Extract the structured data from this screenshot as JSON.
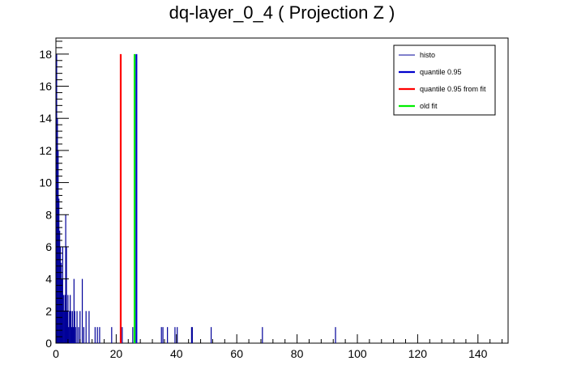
{
  "chart_data": {
    "type": "bar",
    "title": "dq-layer_0_4 ( Projection Z )",
    "xlabel": "",
    "ylabel": "",
    "xlim": [
      0,
      150
    ],
    "ylim": [
      0,
      19
    ],
    "x_ticks": [
      0,
      20,
      40,
      60,
      80,
      100,
      120,
      140
    ],
    "y_ticks": [
      0,
      2,
      4,
      6,
      8,
      10,
      12,
      14,
      16,
      18
    ],
    "grid": false,
    "legend_position": "top-right",
    "histogram": {
      "name": "histo",
      "color": "#000099",
      "bins": [
        {
          "x": 0.25,
          "y": 18
        },
        {
          "x": 0.5,
          "y": 14
        },
        {
          "x": 0.75,
          "y": 12
        },
        {
          "x": 1.0,
          "y": 9
        },
        {
          "x": 1.25,
          "y": 7
        },
        {
          "x": 1.5,
          "y": 6
        },
        {
          "x": 1.75,
          "y": 5
        },
        {
          "x": 2.0,
          "y": 4
        },
        {
          "x": 2.25,
          "y": 6
        },
        {
          "x": 2.5,
          "y": 3
        },
        {
          "x": 2.75,
          "y": 2
        },
        {
          "x": 3.0,
          "y": 3
        },
        {
          "x": 3.25,
          "y": 8
        },
        {
          "x": 3.5,
          "y": 6
        },
        {
          "x": 3.75,
          "y": 2
        },
        {
          "x": 4.0,
          "y": 3
        },
        {
          "x": 4.25,
          "y": 1
        },
        {
          "x": 4.5,
          "y": 2
        },
        {
          "x": 4.75,
          "y": 3
        },
        {
          "x": 5.0,
          "y": 2
        },
        {
          "x": 5.25,
          "y": 1
        },
        {
          "x": 5.5,
          "y": 2
        },
        {
          "x": 5.75,
          "y": 1
        },
        {
          "x": 6.0,
          "y": 4
        },
        {
          "x": 6.25,
          "y": 2
        },
        {
          "x": 6.5,
          "y": 1
        },
        {
          "x": 7.0,
          "y": 2
        },
        {
          "x": 7.5,
          "y": 1
        },
        {
          "x": 8.0,
          "y": 2
        },
        {
          "x": 8.75,
          "y": 4
        },
        {
          "x": 9.25,
          "y": 1
        },
        {
          "x": 10.0,
          "y": 2
        },
        {
          "x": 11.0,
          "y": 2
        },
        {
          "x": 13.0,
          "y": 1
        },
        {
          "x": 13.75,
          "y": 1
        },
        {
          "x": 14.5,
          "y": 1
        },
        {
          "x": 18.5,
          "y": 1
        },
        {
          "x": 22.0,
          "y": 1
        },
        {
          "x": 25.5,
          "y": 1
        },
        {
          "x": 35.0,
          "y": 1
        },
        {
          "x": 35.5,
          "y": 1
        },
        {
          "x": 37.0,
          "y": 1
        },
        {
          "x": 39.5,
          "y": 1
        },
        {
          "x": 40.25,
          "y": 1
        },
        {
          "x": 45.0,
          "y": 1
        },
        {
          "x": 45.25,
          "y": 1
        },
        {
          "x": 51.5,
          "y": 1
        },
        {
          "x": 68.5,
          "y": 1
        },
        {
          "x": 92.75,
          "y": 1
        }
      ]
    },
    "vertical_lines": [
      {
        "name": "quantile 0.95",
        "x": 26.7,
        "y": 18,
        "color": "#0000cc"
      },
      {
        "name": "quantile 0.95 from fit",
        "x": 21.5,
        "y": 18,
        "color": "#ff0000"
      },
      {
        "name": "old fit",
        "x": 26.1,
        "y": 18,
        "color": "#00ee00"
      }
    ],
    "legend": [
      {
        "label": "histo",
        "color": "#000099",
        "line": "thin"
      },
      {
        "label": "quantile 0.95",
        "color": "#0000cc",
        "line": "thick"
      },
      {
        "label": "quantile 0.95 from fit",
        "color": "#ff0000",
        "line": "thick"
      },
      {
        "label": "old fit",
        "color": "#00ee00",
        "line": "thick"
      }
    ]
  }
}
